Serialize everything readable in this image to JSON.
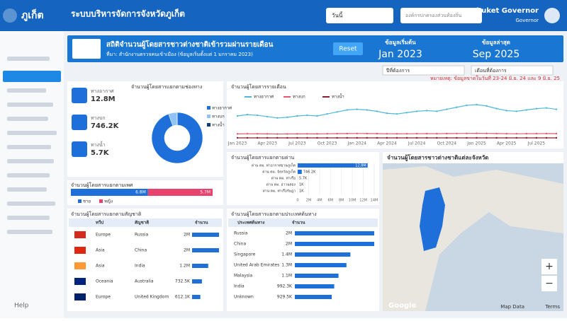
{
  "header": {
    "title": "ระบบบริหารจัดการจังหวัดภูเก็ต",
    "period_filter": "วันนี้",
    "search_placeholder": "องค์กรปกครองส่วนท้องถิ่น",
    "brand": "Phuket Governor",
    "brand_sub": "Governor"
  },
  "sidebar": {
    "logo": "ภูเก็ต",
    "help": "Help"
  },
  "banner": {
    "title": "สถิติจำนวนผู้โดยสารชาวต่างชาติเข้ารวมผ่านรายเดือน",
    "source": "ที่มา: สำนักงานตรวจคนเข้าเมือง (ข้อมูลเริ่มตั้งแต่ 1 มกราคม 2023)",
    "reset": "Reset",
    "start_label": "ข้อมูลเริ่มต้น",
    "start": "Jan 2023",
    "end_label": "ข้อมูลล่าสุด",
    "end": "Sep 2025"
  },
  "filters": [
    "ปีที่ต้องการ",
    "เดือนที่ต้องการ"
  ],
  "note": "หมายเหตุ: ข้อมูลขาดในวันที่ 23-24 มิ.ย. 24 และ 9 มิ.ย. 25",
  "kpis": [
    {
      "label": "ทางอากาศ",
      "value": "12.8M"
    },
    {
      "label": "ทางบก",
      "value": "746.2K"
    },
    {
      "label": "ทางน้ำ",
      "value": "5.7K"
    }
  ],
  "donut": {
    "type": "pie",
    "title": "จำนวนผู้โดยสารแยกตามช่องทาง",
    "categories": [
      "ทางอากาศ",
      "ทางบก",
      "ทางน้ำ"
    ],
    "values": [
      94.5,
      5.5,
      0.04
    ],
    "colors": [
      "#1e6fd9",
      "#8fc3f5",
      "#0d3c78"
    ]
  },
  "line_chart": {
    "type": "line",
    "title": "จำนวนผู้โดยสารรายเดือน",
    "categories": [
      "Jan 2023",
      null,
      null,
      "Apr 2023",
      null,
      null,
      "Jul 2023",
      null,
      null,
      "Oct 2023",
      null,
      null,
      "Jan 2024",
      null,
      null,
      "Apr 2024",
      null,
      null,
      "Jul 2024",
      null,
      null,
      "Oct 2024",
      null,
      null,
      "Jan 2025",
      null,
      null,
      "Apr 2025",
      null,
      null,
      "Jul 2025",
      null,
      null
    ],
    "series": [
      {
        "name": "ทางอากาศ",
        "color": "#4fb8d8",
        "values": [
          330000,
          350000,
          340000,
          320000,
          300000,
          310000,
          330000,
          340000,
          330000,
          360000,
          390000,
          420000,
          430000,
          420000,
          400000,
          370000,
          360000,
          380000,
          400000,
          410000,
          400000,
          430000,
          460000,
          490000,
          500000,
          480000,
          440000,
          410000,
          400000,
          420000,
          440000,
          450000,
          430000
        ]
      },
      {
        "name": "ทางบก",
        "color": "#e05a6a",
        "values": [
          60000,
          62000,
          61000,
          60000,
          58000,
          59000,
          60000,
          61000,
          60000,
          62000,
          64000,
          65000,
          66000,
          65000,
          64000,
          62000,
          61000,
          62000,
          63000,
          64000,
          63000,
          65000,
          66000,
          67000,
          68000,
          67000,
          65000,
          63000,
          62000,
          63000,
          64000,
          65000,
          64000
        ]
      },
      {
        "name": "ทางน้ำ",
        "color": "#8b1e2e",
        "values": [
          200,
          210,
          190,
          180,
          170,
          180,
          190,
          200,
          190,
          210,
          220,
          230,
          240,
          230,
          220,
          210,
          200,
          210,
          220,
          230,
          220,
          230,
          240,
          250,
          260,
          250,
          240,
          230,
          220,
          230,
          240,
          250,
          240
        ]
      }
    ]
  },
  "gender_bar": {
    "type": "bar",
    "title": "จำนวนผู้โดยสารแยกตามเพศ",
    "series": [
      {
        "name": "ชาย",
        "color": "#1e6fd9",
        "values": [
          6800000
        ],
        "value_labels": [
          "6.8M"
        ]
      },
      {
        "name": "หญิง",
        "color": "#e8436e",
        "values": [
          5700000
        ],
        "value_labels": [
          "5.7M"
        ]
      }
    ]
  },
  "checkpoint_bar": {
    "type": "bar",
    "title": "จำนวนผู้โดยสารแยกตามด่าน",
    "color": "#1e6fd9",
    "categories": [
      "ด่าน ตม. ท่าอากาศยานภูเก็ต",
      "ด่าน ตม. จังหวัดภูเก็ต",
      "ด่าน ตม. ท่าเรือ",
      "ด่าน ตม. อ่าวฉลอง",
      "ด่าน ตม. ท่าเรือรัษฎา"
    ],
    "values": [
      12800000,
      746200,
      5700,
      1000,
      1000
    ],
    "value_labels": [
      "12.8M",
      "746.2K",
      "5.7K",
      "1K",
      "1K"
    ],
    "xlim": [
      0,
      14000000
    ],
    "xticks": [
      0,
      {
        "value": 2000000,
        "label": "2M"
      },
      {
        "value": 4000000,
        "label": "4M"
      },
      {
        "value": 6000000,
        "label": "6M"
      },
      {
        "value": 8000000,
        "label": "8M"
      },
      {
        "value": 10000000,
        "label": "10M"
      },
      {
        "value": 12000000,
        "label": "12M"
      },
      {
        "value": 14000000,
        "label": "14M"
      }
    ]
  },
  "nationality_table": {
    "title": "จำนวนผู้โดยสารแยกตามสัญชาติ",
    "columns": [
      "ทวีป",
      "สัญชาติ",
      "จำนวน"
    ],
    "rows": [
      {
        "region": "Europe",
        "country": "Russia",
        "value": 2000000,
        "label": "2M"
      },
      {
        "region": "Asia",
        "country": "China",
        "value": 2000000,
        "label": "2M"
      },
      {
        "region": "Asia",
        "country": "India",
        "value": 1200000,
        "label": "1.2M"
      },
      {
        "region": "Oceania",
        "country": "Australia",
        "value": 732500,
        "label": "732.5K"
      },
      {
        "region": "Europe",
        "country": "United Kingdom",
        "value": 612100,
        "label": "612.1K"
      }
    ]
  },
  "country_table": {
    "title": "จำนวนผู้โดยสารแยกตามประเทศต้นทาง",
    "columns": [
      "ประเทศต้นทาง",
      "จำนวน"
    ],
    "rows": [
      {
        "country": "Russia",
        "value": 2000000,
        "label": "2M"
      },
      {
        "country": "China",
        "value": 2000000,
        "label": "2M"
      },
      {
        "country": "Singapore",
        "value": 1400000,
        "label": "1.4M"
      },
      {
        "country": "United Arab Emirates",
        "value": 1300000,
        "label": "1.3M"
      },
      {
        "country": "Malaysia",
        "value": 1100000,
        "label": "1.1M"
      },
      {
        "country": "India",
        "value": 992300,
        "label": "992.3K"
      },
      {
        "country": "Unknown",
        "value": 929500,
        "label": "929.5K"
      }
    ]
  },
  "map": {
    "title": "จำนวนผู้โดยสารชาวต่างชาติแต่ละจังหวัด",
    "attribution": "Google",
    "map_data": "Map Data",
    "terms": "Terms",
    "zoom_in": "+",
    "zoom_out": "−"
  }
}
